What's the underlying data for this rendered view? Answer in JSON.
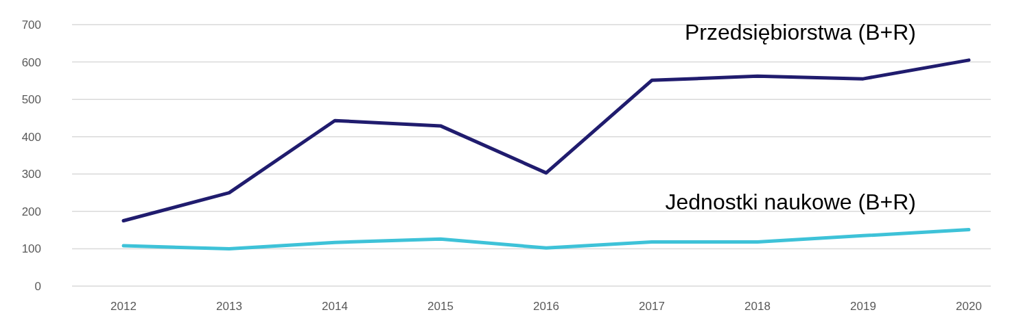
{
  "chart_data": {
    "type": "line",
    "categories": [
      "2012",
      "2013",
      "2014",
      "2015",
      "2016",
      "2017",
      "2018",
      "2019",
      "2020"
    ],
    "series": [
      {
        "name": "Przedsiębiorstwa (B+R)",
        "color": "#201c6e",
        "values": [
          175,
          250,
          443,
          429,
          303,
          551,
          562,
          555,
          605
        ]
      },
      {
        "name": "Jednostki naukowe (B+R)",
        "color": "#3ec2d8",
        "values": [
          108,
          100,
          117,
          126,
          102,
          118,
          118,
          135,
          151
        ]
      }
    ],
    "ylim": [
      0,
      700
    ],
    "yticks": [
      0,
      100,
      200,
      300,
      400,
      500,
      600,
      700
    ],
    "grid": "y",
    "legend": false,
    "marker": "none",
    "line_style": "solid"
  }
}
